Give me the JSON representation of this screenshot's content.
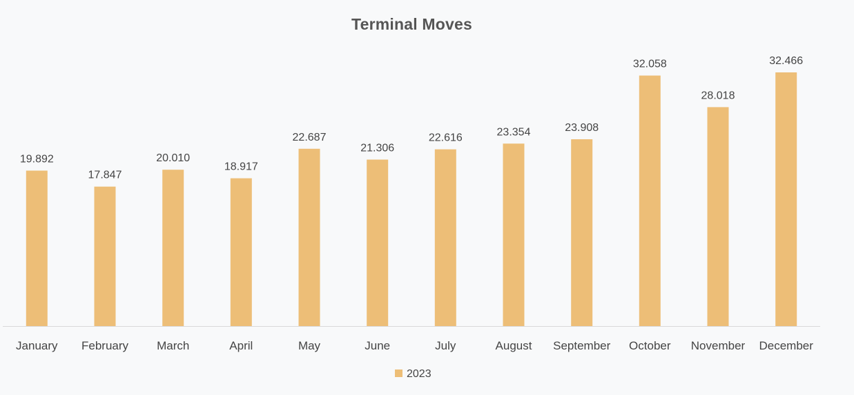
{
  "chart_data": {
    "type": "bar",
    "title": "Terminal Moves",
    "categories": [
      "January",
      "February",
      "March",
      "April",
      "May",
      "June",
      "July",
      "August",
      "September",
      "October",
      "November",
      "December"
    ],
    "series": [
      {
        "name": "2023",
        "values": [
          19.892,
          17.847,
          20.01,
          18.917,
          22.687,
          21.306,
          22.616,
          23.354,
          23.908,
          32.058,
          28.018,
          32.466
        ],
        "labels": [
          "19.892",
          "17.847",
          "20.010",
          "18.917",
          "22.687",
          "21.306",
          "22.616",
          "23.354",
          "23.908",
          "32.058",
          "28.018",
          "32.466"
        ],
        "color": "#EDBE77"
      }
    ],
    "ylim": [
      0,
      32.466
    ],
    "grid": false,
    "legend_position": "bottom"
  }
}
